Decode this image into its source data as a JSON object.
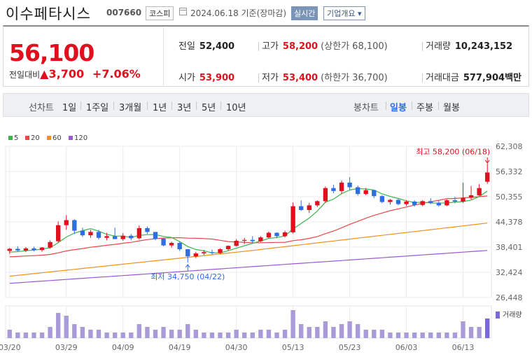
{
  "header": {
    "name": "이수페타시스",
    "code": "007660",
    "market": "코스피",
    "date": "2024.06.18 기준(장마감)",
    "realtime_label": "실시간",
    "overview_label": "기업개요 ▾"
  },
  "summary": {
    "price": "56,100",
    "diff_label": "전일대비",
    "diff_arrow": "▲",
    "diff_value": "3,700",
    "diff_pct": "+7.06%",
    "prev_label": "전일",
    "prev_value": "52,400",
    "high_label": "고가",
    "high_value": "58,200",
    "upper_label": "(상한가 68,100)",
    "volume_label": "거래량",
    "volume_value": "10,243,152",
    "open_label": "시가",
    "open_value": "53,900",
    "low_label": "저가",
    "low_value": "53,400",
    "lower_label": "(하한가 36,700)",
    "amount_label": "거래대금",
    "amount_value": "577,904",
    "amount_unit": "백만"
  },
  "toolbar": {
    "line_label": "선차트",
    "periods": [
      "1일",
      "1주일",
      "3개월",
      "1년",
      "3년",
      "5년",
      "10년"
    ],
    "candle_label": "봉차트",
    "candle_periods": [
      "일봉",
      "주봉",
      "월봉"
    ]
  },
  "colors": {
    "up": "#e0101e",
    "down": "#2f6ee0",
    "ma5": "#3cb44b",
    "ma20": "#e8474a",
    "ma60": "#f0901e",
    "ma120": "#9b59d0"
  },
  "chart_data": {
    "type": "candlestick",
    "legend": [
      {
        "name": "5",
        "color": "#3cb44b"
      },
      {
        "name": "20",
        "color": "#e8474a"
      },
      {
        "name": "60",
        "color": "#f0901e"
      },
      {
        "name": "120",
        "color": "#9b59d0"
      }
    ],
    "ylim": [
      26448,
      62308
    ],
    "yticks": [
      "62,308",
      "56,332",
      "50,355",
      "44,378",
      "38,401",
      "32,424",
      "26,448"
    ],
    "xticks": [
      "03/20",
      "03/29",
      "04/09",
      "04/19",
      "04/30",
      "05/13",
      "05/23",
      "06/03",
      "06/13"
    ],
    "xtick_index": [
      0,
      7,
      14,
      21,
      28,
      35,
      42,
      49,
      56
    ],
    "volume_label": "거래량",
    "annotations": {
      "high": "최고 58,200 (06/18)",
      "high_index": 59,
      "high_value": 58200,
      "low": "최저 34,750 (04/22)",
      "low_index": 22,
      "low_value": 34750
    },
    "candles": [
      [
        37500,
        38200,
        36800,
        38000,
        3
      ],
      [
        38000,
        38600,
        37300,
        37600,
        2
      ],
      [
        37600,
        38400,
        37200,
        38100,
        2
      ],
      [
        38100,
        38500,
        37400,
        37700,
        2
      ],
      [
        37700,
        38400,
        37300,
        38300,
        2
      ],
      [
        38300,
        40000,
        38000,
        39600,
        4
      ],
      [
        39800,
        44500,
        39500,
        43600,
        9
      ],
      [
        43600,
        46000,
        42500,
        44800,
        8
      ],
      [
        44800,
        45000,
        41500,
        42300,
        5
      ],
      [
        42300,
        43000,
        40800,
        41200,
        4
      ],
      [
        41200,
        42500,
        40600,
        42000,
        3
      ],
      [
        42000,
        42500,
        40200,
        40600,
        3
      ],
      [
        40600,
        41800,
        40000,
        41000,
        2
      ],
      [
        41000,
        43000,
        40600,
        40300,
        2
      ],
      [
        40300,
        41700,
        39900,
        41100,
        2
      ],
      [
        41100,
        41500,
        40000,
        40500,
        2
      ],
      [
        40500,
        43500,
        40200,
        42900,
        5
      ],
      [
        42900,
        43300,
        41500,
        42000,
        4
      ],
      [
        42000,
        41900,
        40000,
        40400,
        3
      ],
      [
        40400,
        40500,
        38600,
        38800,
        4
      ],
      [
        38800,
        39700,
        38300,
        39400,
        3
      ],
      [
        39400,
        39700,
        37500,
        37900,
        3
      ],
      [
        37900,
        37700,
        34750,
        36200,
        5
      ],
      [
        36200,
        37300,
        35800,
        36900,
        3
      ],
      [
        36900,
        37700,
        36500,
        37200,
        2
      ],
      [
        37200,
        37800,
        36600,
        37000,
        2
      ],
      [
        37000,
        38100,
        36700,
        37900,
        2
      ],
      [
        37900,
        38800,
        37600,
        38700,
        2
      ],
      [
        38700,
        40300,
        38500,
        39900,
        3
      ],
      [
        39900,
        40600,
        39100,
        40100,
        2
      ],
      [
        40100,
        41000,
        39400,
        39800,
        2
      ],
      [
        39800,
        41000,
        39600,
        40700,
        3
      ],
      [
        40700,
        42100,
        40500,
        41800,
        3
      ],
      [
        41800,
        41900,
        40500,
        41000,
        2
      ],
      [
        41000,
        42300,
        40700,
        41900,
        3
      ],
      [
        41900,
        49000,
        41600,
        48100,
        10
      ],
      [
        48100,
        49500,
        47000,
        47200,
        5
      ],
      [
        47200,
        48900,
        46500,
        48300,
        4
      ],
      [
        48300,
        49500,
        47900,
        49300,
        4
      ],
      [
        49300,
        52800,
        48900,
        52400,
        6
      ],
      [
        52400,
        53200,
        51200,
        51700,
        4
      ],
      [
        51700,
        54200,
        51000,
        53700,
        5
      ],
      [
        53700,
        55000,
        52000,
        52600,
        6
      ],
      [
        52600,
        53000,
        50600,
        51000,
        5
      ],
      [
        51000,
        52400,
        50700,
        51900,
        3
      ],
      [
        51900,
        52000,
        50000,
        50500,
        3
      ],
      [
        50500,
        50700,
        48800,
        49100,
        3
      ],
      [
        49100,
        49800,
        48500,
        49600,
        2
      ],
      [
        49600,
        49900,
        48300,
        48600,
        2
      ],
      [
        48600,
        49500,
        48200,
        49200,
        2
      ],
      [
        49200,
        49500,
        48000,
        48400,
        2
      ],
      [
        48400,
        49500,
        48100,
        49300,
        2
      ],
      [
        49300,
        50000,
        48600,
        48900,
        2
      ],
      [
        48900,
        49500,
        48000,
        48300,
        2
      ],
      [
        48300,
        49700,
        48100,
        49500,
        2
      ],
      [
        49500,
        50300,
        48800,
        49200,
        2
      ],
      [
        49200,
        53700,
        48900,
        50100,
        6
      ],
      [
        50100,
        52900,
        49700,
        50700,
        4
      ],
      [
        50700,
        53300,
        50500,
        52400,
        4
      ],
      [
        53900,
        58200,
        53400,
        56100,
        7
      ]
    ]
  }
}
